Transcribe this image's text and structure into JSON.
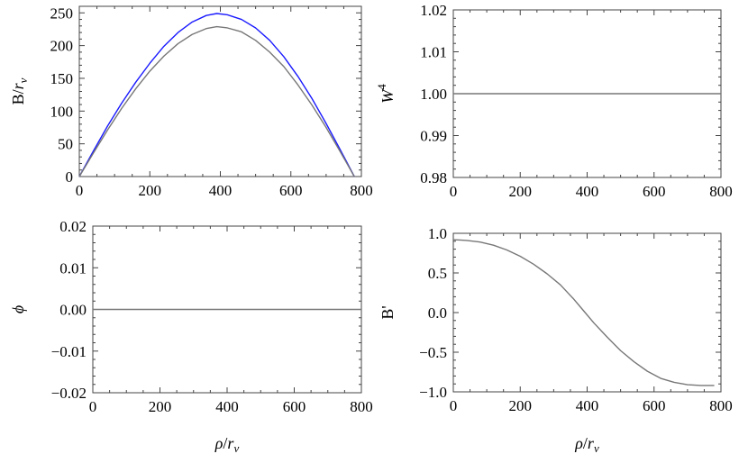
{
  "chart_data": [
    {
      "id": "p1",
      "type": "line",
      "title": "",
      "xlabel": "",
      "ylabel": "B/r_v",
      "xlim": [
        0,
        800
      ],
      "ylim": [
        0,
        260
      ],
      "xticks": [
        0,
        200,
        400,
        600,
        800
      ],
      "xtick_labels": [
        "0",
        "200",
        "400",
        "600",
        "800"
      ],
      "yticks": [
        0,
        50,
        100,
        150,
        200,
        250
      ],
      "ytick_labels": [
        "0",
        "50",
        "100",
        "150",
        "200",
        "250"
      ],
      "grid": false,
      "series": [
        {
          "color": "#1a1aff",
          "x": [
            0,
            40,
            80,
            120,
            160,
            200,
            240,
            280,
            320,
            360,
            390,
            420,
            460,
            500,
            540,
            580,
            620,
            660,
            700,
            740,
            780
          ],
          "y": [
            0,
            39,
            77,
            112,
            144,
            173,
            199,
            220,
            236,
            246,
            249,
            247,
            240,
            227,
            208,
            183,
            153,
            119,
            81,
            41,
            0
          ]
        },
        {
          "color": "#777777",
          "x": [
            0,
            40,
            80,
            120,
            160,
            200,
            240,
            280,
            320,
            360,
            390,
            420,
            460,
            500,
            540,
            580,
            620,
            660,
            700,
            740,
            780
          ],
          "y": [
            0,
            36,
            71,
            104,
            134,
            161,
            184,
            203,
            217,
            226,
            229,
            227,
            221,
            208,
            190,
            168,
            140,
            109,
            75,
            38,
            0
          ]
        }
      ]
    },
    {
      "id": "p2",
      "type": "line",
      "title": "",
      "xlabel": "",
      "ylabel": "W^4",
      "xlim": [
        0,
        800
      ],
      "ylim": [
        0.98,
        1.02
      ],
      "xticks": [
        0,
        200,
        400,
        600,
        800
      ],
      "xtick_labels": [
        "0",
        "200",
        "400",
        "600",
        "800"
      ],
      "yticks": [
        0.98,
        0.99,
        1.0,
        1.01,
        1.02
      ],
      "ytick_labels": [
        "0.98",
        "0.99",
        "1.00",
        "1.01",
        "1.02"
      ],
      "grid": false,
      "series": [
        {
          "color": "#777777",
          "x": [
            0,
            800
          ],
          "y": [
            1.0,
            1.0
          ]
        }
      ]
    },
    {
      "id": "p3",
      "type": "line",
      "title": "",
      "xlabel": "ρ/r_v",
      "ylabel": "ϕ",
      "xlim": [
        0,
        800
      ],
      "ylim": [
        -0.02,
        0.02
      ],
      "xticks": [
        0,
        200,
        400,
        600,
        800
      ],
      "xtick_labels": [
        "0",
        "200",
        "400",
        "600",
        "800"
      ],
      "yticks": [
        -0.02,
        -0.01,
        0.0,
        0.01,
        0.02
      ],
      "ytick_labels": [
        "−0.02",
        "−0.01",
        "0.00",
        "0.01",
        "0.02"
      ],
      "grid": false,
      "series": [
        {
          "color": "#777777",
          "x": [
            0,
            800
          ],
          "y": [
            0.0,
            0.0
          ]
        }
      ]
    },
    {
      "id": "p4",
      "type": "line",
      "title": "",
      "xlabel": "ρ/r_v",
      "ylabel": "B'",
      "xlim": [
        0,
        800
      ],
      "ylim": [
        -1.0,
        1.0
      ],
      "xticks": [
        0,
        200,
        400,
        600,
        800
      ],
      "xtick_labels": [
        "0",
        "200",
        "400",
        "600",
        "800"
      ],
      "yticks": [
        -1.0,
        -0.5,
        0.0,
        0.5,
        1.0
      ],
      "ytick_labels": [
        "−1.0",
        "−0.5",
        "0.0",
        "0.5",
        "1.0"
      ],
      "grid": false,
      "series": [
        {
          "color": "#777777",
          "x": [
            0,
            40,
            80,
            120,
            160,
            200,
            240,
            280,
            320,
            360,
            390,
            420,
            460,
            500,
            540,
            580,
            620,
            660,
            700,
            740,
            780
          ],
          "y": [
            0.92,
            0.91,
            0.89,
            0.85,
            0.79,
            0.71,
            0.61,
            0.49,
            0.35,
            0.17,
            0.02,
            -0.13,
            -0.31,
            -0.48,
            -0.62,
            -0.74,
            -0.83,
            -0.88,
            -0.91,
            -0.92,
            -0.92
          ]
        }
      ]
    }
  ]
}
